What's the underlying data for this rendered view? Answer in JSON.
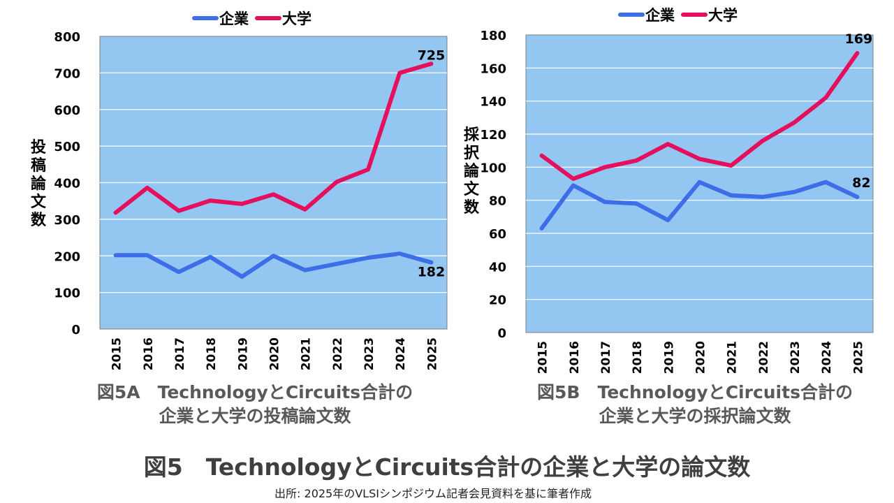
{
  "figure_title": "図5　TechnologyとCircuits合計の企業と大学の論文数",
  "source": "出所: 2025年のVLSIシンポジウム記者会見資料を基に筆者作成",
  "colors": {
    "company": "#3d6ee8",
    "university": "#e5105d",
    "plot_background": "#94c6f2",
    "gridline": "#ffffff"
  },
  "chart_data": [
    {
      "id": "5A",
      "type": "line",
      "caption_line1": "図5A　TechnologyとCircuits合計の",
      "caption_line2": "企業と大学の投稿論文数",
      "ylabel": "投稿論文数",
      "ylim": [
        0,
        800
      ],
      "yticks": [
        0,
        100,
        200,
        300,
        400,
        500,
        600,
        700,
        800
      ],
      "grid": true,
      "legend_position": "top-center",
      "categories": [
        "2015",
        "2016",
        "2017",
        "2018",
        "2019",
        "2020",
        "2021",
        "2022",
        "2023",
        "2024",
        "2025"
      ],
      "series": [
        {
          "name": "企業",
          "color": "#3d6ee8",
          "values": [
            202,
            202,
            156,
            197,
            143,
            200,
            161,
            178,
            195,
            206,
            182
          ],
          "end_label": "182"
        },
        {
          "name": "大学",
          "color": "#e5105d",
          "values": [
            318,
            386,
            323,
            351,
            342,
            368,
            327,
            402,
            436,
            700,
            725
          ],
          "end_label": "725"
        }
      ]
    },
    {
      "id": "5B",
      "type": "line",
      "caption_line1": "図5B　TechnologyとCircuits合計の",
      "caption_line2": "企業と大学の採択論文数",
      "ylabel": "採択論文数",
      "ylim": [
        0,
        180
      ],
      "yticks": [
        0,
        20,
        40,
        60,
        80,
        100,
        120,
        140,
        160,
        180
      ],
      "grid": true,
      "legend_position": "top-center",
      "categories": [
        "2015",
        "2016",
        "2017",
        "2018",
        "2019",
        "2020",
        "2021",
        "2022",
        "2023",
        "2024",
        "2025"
      ],
      "series": [
        {
          "name": "企業",
          "color": "#3d6ee8",
          "values": [
            63,
            89,
            79,
            78,
            68,
            91,
            83,
            82,
            85,
            91,
            82
          ],
          "end_label": "82"
        },
        {
          "name": "大学",
          "color": "#e5105d",
          "values": [
            107,
            93,
            100,
            104,
            114,
            105,
            101,
            116,
            127,
            142,
            169
          ],
          "end_label": "169"
        }
      ]
    }
  ]
}
